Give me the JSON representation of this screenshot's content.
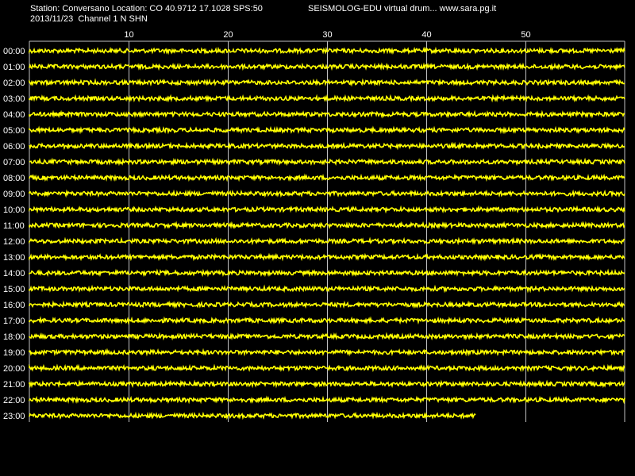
{
  "header": {
    "station_line": "Station: Conversano Location: CO 40.9712 17.1028 SPS:50",
    "date_line": "2013/11/23  Channel 1 N SHN",
    "title": "SEISMOLOG-EDU virtual drum... www.sara.pg.it"
  },
  "chart_data": {
    "type": "line",
    "title": "SEISMOLOG-EDU virtual drum... www.sara.pg.it",
    "xlabel": "",
    "ylabel": "",
    "xlim": [
      0,
      60
    ],
    "x_ticks": [
      10,
      20,
      30,
      40,
      50
    ],
    "grid": true,
    "hours": [
      "00:00",
      "01:00",
      "02:00",
      "03:00",
      "04:00",
      "05:00",
      "06:00",
      "07:00",
      "08:00",
      "09:00",
      "10:00",
      "11:00",
      "12:00",
      "13:00",
      "14:00",
      "15:00",
      "16:00",
      "17:00",
      "18:00",
      "19:00",
      "20:00",
      "21:00",
      "22:00",
      "23:00"
    ],
    "minutes_recorded": [
      60,
      60,
      60,
      60,
      60,
      60,
      60,
      60,
      60,
      60,
      60,
      60,
      60,
      60,
      60,
      60,
      60,
      60,
      60,
      60,
      60,
      60,
      60,
      45
    ],
    "trace_color": "#ffff00",
    "grid_color": "#c0c0c0",
    "background": "#000000"
  }
}
